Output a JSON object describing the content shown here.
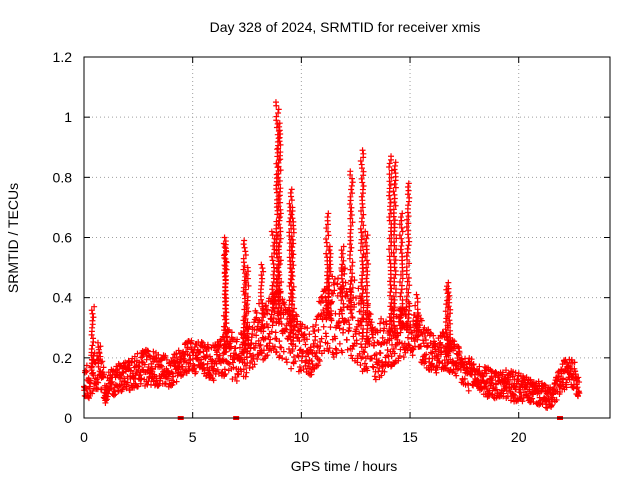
{
  "chart_data": {
    "type": "scatter",
    "title": "Day 328 of 2024, SRMTID for receiver xmis",
    "xlabel": "GPS time / hours",
    "ylabel": "SRMTID / TECUs",
    "xlim": [
      0,
      24.2
    ],
    "ylim": [
      0,
      1.2
    ],
    "xticks": [
      0,
      5,
      10,
      15,
      20
    ],
    "xtick_labels": [
      "0",
      "5",
      "10",
      "15",
      "20"
    ],
    "yticks": [
      0,
      0.2,
      0.4,
      0.6,
      0.8,
      1.0,
      1.2
    ],
    "ytick_labels": [
      "0",
      "0.2",
      "0.4",
      "0.6",
      "0.8",
      "1",
      "1.2"
    ],
    "grid": true,
    "marker": "+",
    "series": [
      {
        "name": "SRMTID",
        "color": "#ff0000",
        "envelope": {
          "x": [
            0.0,
            0.3,
            0.7,
            1.0,
            1.5,
            2.0,
            2.5,
            3.0,
            3.5,
            4.0,
            4.5,
            5.0,
            5.5,
            6.0,
            6.5,
            7.0,
            7.5,
            8.0,
            8.5,
            9.0,
            9.5,
            10.0,
            10.5,
            11.0,
            11.5,
            12.0,
            12.5,
            13.0,
            13.5,
            14.0,
            14.5,
            15.0,
            15.5,
            16.0,
            16.5,
            17.0,
            17.5,
            18.0,
            18.5,
            19.0,
            19.5,
            20.0,
            20.5,
            21.0,
            21.5,
            22.0,
            22.5,
            22.8
          ],
          "base": [
            0.1,
            0.14,
            0.17,
            0.1,
            0.13,
            0.14,
            0.16,
            0.17,
            0.16,
            0.15,
            0.19,
            0.21,
            0.2,
            0.18,
            0.22,
            0.2,
            0.22,
            0.28,
            0.3,
            0.32,
            0.26,
            0.24,
            0.22,
            0.32,
            0.34,
            0.36,
            0.32,
            0.26,
            0.22,
            0.26,
            0.28,
            0.3,
            0.26,
            0.22,
            0.22,
            0.2,
            0.15,
            0.14,
            0.12,
            0.11,
            0.11,
            0.1,
            0.09,
            0.08,
            0.06,
            0.14,
            0.15,
            0.1
          ],
          "spread": [
            0.05,
            0.07,
            0.07,
            0.05,
            0.05,
            0.05,
            0.06,
            0.06,
            0.06,
            0.05,
            0.05,
            0.06,
            0.06,
            0.06,
            0.08,
            0.08,
            0.09,
            0.1,
            0.1,
            0.12,
            0.1,
            0.09,
            0.08,
            0.12,
            0.14,
            0.14,
            0.14,
            0.12,
            0.1,
            0.1,
            0.09,
            0.09,
            0.08,
            0.07,
            0.07,
            0.06,
            0.06,
            0.05,
            0.05,
            0.05,
            0.05,
            0.05,
            0.04,
            0.04,
            0.04,
            0.05,
            0.05,
            0.04
          ]
        },
        "spikes": [
          {
            "x": 0.4,
            "y": 0.37
          },
          {
            "x": 0.7,
            "y": 0.25
          },
          {
            "x": 1.0,
            "y": 0.05
          },
          {
            "x": 6.5,
            "y": 0.58
          },
          {
            "x": 6.5,
            "y": 0.6
          },
          {
            "x": 7.4,
            "y": 0.59
          },
          {
            "x": 7.5,
            "y": 0.5
          },
          {
            "x": 8.2,
            "y": 0.51
          },
          {
            "x": 8.7,
            "y": 0.62
          },
          {
            "x": 8.9,
            "y": 1.05
          },
          {
            "x": 9.0,
            "y": 0.98
          },
          {
            "x": 9.5,
            "y": 0.76
          },
          {
            "x": 9.6,
            "y": 0.7
          },
          {
            "x": 11.2,
            "y": 0.68
          },
          {
            "x": 11.3,
            "y": 0.57
          },
          {
            "x": 11.9,
            "y": 0.57
          },
          {
            "x": 12.3,
            "y": 0.82
          },
          {
            "x": 12.8,
            "y": 0.89
          },
          {
            "x": 13.0,
            "y": 0.62
          },
          {
            "x": 14.1,
            "y": 0.87
          },
          {
            "x": 14.3,
            "y": 0.85
          },
          {
            "x": 14.6,
            "y": 0.68
          },
          {
            "x": 14.9,
            "y": 0.78
          },
          {
            "x": 15.3,
            "y": 0.41
          },
          {
            "x": 16.7,
            "y": 0.45
          },
          {
            "x": 16.8,
            "y": 0.43
          }
        ]
      }
    ],
    "zero_markers": [
      {
        "x": 4.45,
        "y": 0
      },
      {
        "x": 7.0,
        "y": 0
      },
      {
        "x": 21.9,
        "y": 0
      }
    ]
  }
}
